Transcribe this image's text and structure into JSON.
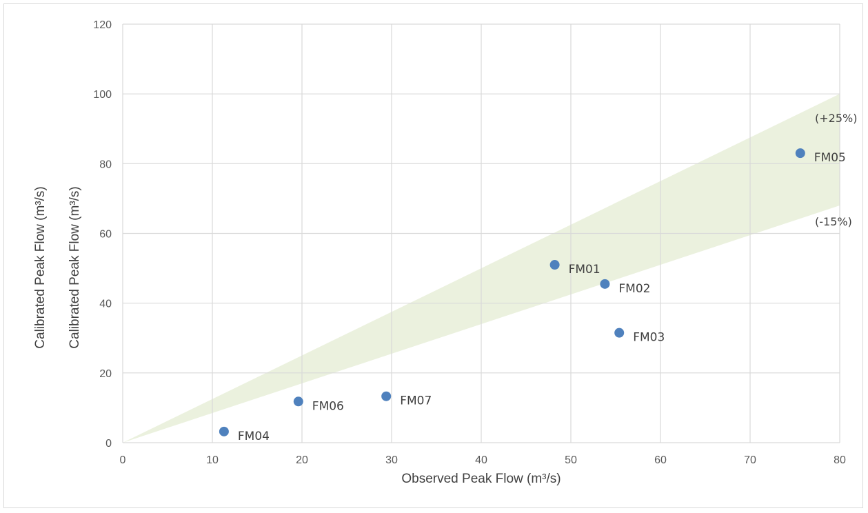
{
  "chart_data": {
    "type": "scatter",
    "title": "",
    "xlabel": "Observed Peak Flow (m³/s)",
    "ylabel": "Calibrated Peak Flow (m³/s)",
    "ylabel_secondary": "Calibrated Peak Flow (m³/s)",
    "xlim": [
      0,
      80
    ],
    "ylim": [
      0,
      120
    ],
    "x_ticks": [
      0,
      10,
      20,
      30,
      40,
      50,
      60,
      70,
      80
    ],
    "y_ticks": [
      0,
      20,
      40,
      60,
      80,
      100,
      120
    ],
    "grid": true,
    "points": [
      {
        "label": "FM01",
        "x": 48.2,
        "y": 51.0
      },
      {
        "label": "FM02",
        "x": 53.8,
        "y": 45.5
      },
      {
        "label": "FM03",
        "x": 55.4,
        "y": 31.5
      },
      {
        "label": "FM04",
        "x": 11.3,
        "y": 3.2
      },
      {
        "label": "FM05",
        "x": 75.6,
        "y": 83.0
      },
      {
        "label": "FM06",
        "x": 19.6,
        "y": 11.8
      },
      {
        "label": "FM07",
        "x": 29.4,
        "y": 13.3
      }
    ],
    "band": {
      "upper_label": "(+25%)",
      "lower_label": "(-15%)",
      "upper_factor": 1.25,
      "lower_factor": 0.85,
      "color": "#ebf1de"
    },
    "marker_color": "#4f81bd",
    "grid_color": "#d9d9d9"
  }
}
